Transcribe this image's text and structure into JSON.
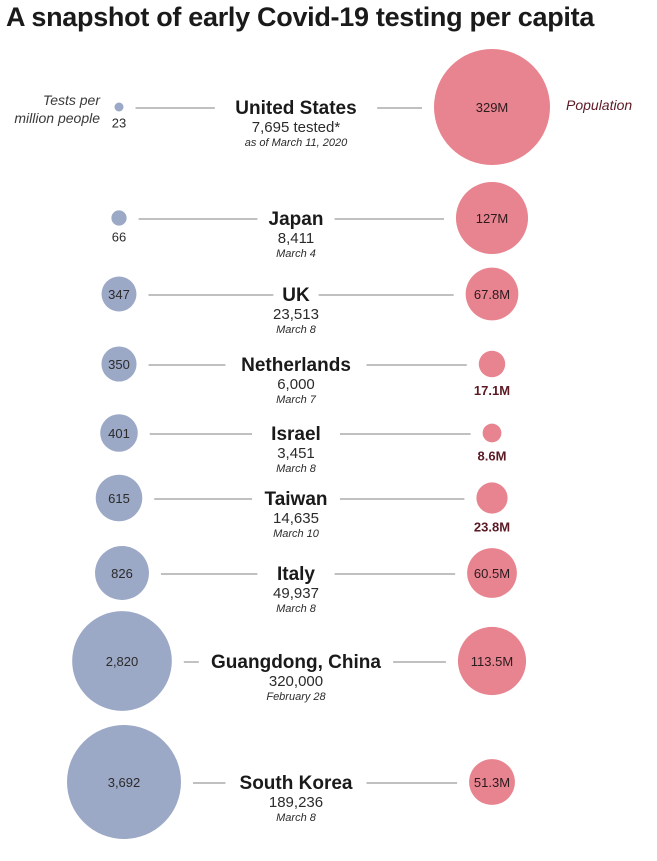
{
  "title": "A snapshot of early Covid-19 testing per capita",
  "legend": {
    "tests_label": [
      "Tests per",
      "million people"
    ],
    "population_label": "Population"
  },
  "colors": {
    "tests": "#9ba8c6",
    "population": "#e8848f",
    "connector": "#9a9a9a"
  },
  "chart_data": {
    "type": "bubble",
    "title": "A snapshot of early Covid-19 testing per capita",
    "rows": [
      {
        "country": "United States",
        "tests_per_million": 23,
        "tests_per_million_label": "23",
        "tested": "7,695 tested*",
        "date": "as of March 11, 2020",
        "population_millions": 329,
        "population_label": "329M"
      },
      {
        "country": "Japan",
        "tests_per_million": 66,
        "tests_per_million_label": "66",
        "tested": "8,411",
        "date": "March 4",
        "population_millions": 127,
        "population_label": "127M"
      },
      {
        "country": "UK",
        "tests_per_million": 347,
        "tests_per_million_label": "347",
        "tested": "23,513",
        "date": "March 8",
        "population_millions": 67.8,
        "population_label": "67.8M"
      },
      {
        "country": "Netherlands",
        "tests_per_million": 350,
        "tests_per_million_label": "350",
        "tested": "6,000",
        "date": "March 7",
        "population_millions": 17.1,
        "population_label": "17.1M"
      },
      {
        "country": "Israel",
        "tests_per_million": 401,
        "tests_per_million_label": "401",
        "tested": "3,451",
        "date": "March 8",
        "population_millions": 8.6,
        "population_label": "8.6M"
      },
      {
        "country": "Taiwan",
        "tests_per_million": 615,
        "tests_per_million_label": "615",
        "tested": "14,635",
        "date": "March 10",
        "population_millions": 23.8,
        "population_label": "23.8M"
      },
      {
        "country": "Italy",
        "tests_per_million": 826,
        "tests_per_million_label": "826",
        "tested": "49,937",
        "date": "March 8",
        "population_millions": 60.5,
        "population_label": "60.5M"
      },
      {
        "country": "Guangdong, China",
        "tests_per_million": 2820,
        "tests_per_million_label": "2,820",
        "tested": "320,000",
        "date": "February 28",
        "population_millions": 113.5,
        "population_label": "113.5M"
      },
      {
        "country": "South Korea",
        "tests_per_million": 3692,
        "tests_per_million_label": "3,692",
        "tested": "189,236",
        "date": "March 8",
        "population_millions": 51.3,
        "population_label": "51.3M"
      }
    ]
  }
}
